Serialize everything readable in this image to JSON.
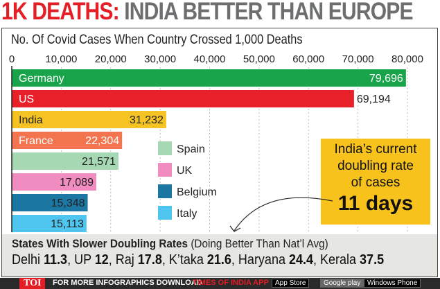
{
  "headline": {
    "part1": "1K DEATHS:",
    "part2": "INDIA BETTER THAN EUROPE"
  },
  "chart_data": {
    "type": "bar",
    "orientation": "horizontal",
    "title": "No. Of Covid Cases When Country Crossed 1,000 Deaths",
    "categories": [
      "Germany",
      "US",
      "India",
      "France",
      "Spain",
      "UK",
      "Belgium",
      "Italy"
    ],
    "values": [
      79696,
      69194,
      31232,
      22304,
      21571,
      17089,
      15348,
      15113
    ],
    "value_labels": [
      "79,696",
      "69,194",
      "31,232",
      "22,304",
      "21,571",
      "17,089",
      "15,348",
      "15,113"
    ],
    "colors": [
      "#19a44b",
      "#e8202a",
      "#f6c324",
      "#f2754f",
      "#a5d8b3",
      "#f08cbf",
      "#1c77a3",
      "#4ec6ef"
    ],
    "xlim": [
      0,
      80000
    ],
    "ticks": [
      0,
      10000,
      20000,
      30000,
      40000,
      50000,
      60000,
      70000,
      80000
    ],
    "tick_labels": [
      "0",
      "10,000",
      "20,000",
      "30,000",
      "40,000",
      "50,000",
      "60,000",
      "70,000",
      "80,000"
    ],
    "legend": [
      {
        "label": "Spain",
        "color": "#a5d8b3"
      },
      {
        "label": "UK",
        "color": "#f08cbf"
      },
      {
        "label": "Belgium",
        "color": "#1c77a3"
      },
      {
        "label": "Italy",
        "color": "#4ec6ef"
      }
    ]
  },
  "callout": {
    "text": "India's current doubling rate of cases",
    "line1": "India’s current",
    "line2": "doubling rate",
    "line3": "of cases",
    "value": "11 days"
  },
  "states": {
    "title": "States With Slower Doubling Rates",
    "note": "(Doing Better Than Nat’l Avg)",
    "items": [
      {
        "name": "Delhi",
        "value": "11.3"
      },
      {
        "name": "UP",
        "value": "12"
      },
      {
        "name": "Raj",
        "value": "17.8"
      },
      {
        "name": "K’taka",
        "value": "21.6"
      },
      {
        "name": "Haryana",
        "value": "24.4"
      },
      {
        "name": "Kerala",
        "value": "37.5"
      }
    ]
  },
  "footer": {
    "brand": "TOI",
    "text1": "FOR MORE  INFOGRAPHICS DOWNLOAD",
    "text2": "TIMES OF INDIA  APP",
    "app_store": "App Store",
    "google_play": "Google play",
    "windows": "Windows Phone"
  }
}
